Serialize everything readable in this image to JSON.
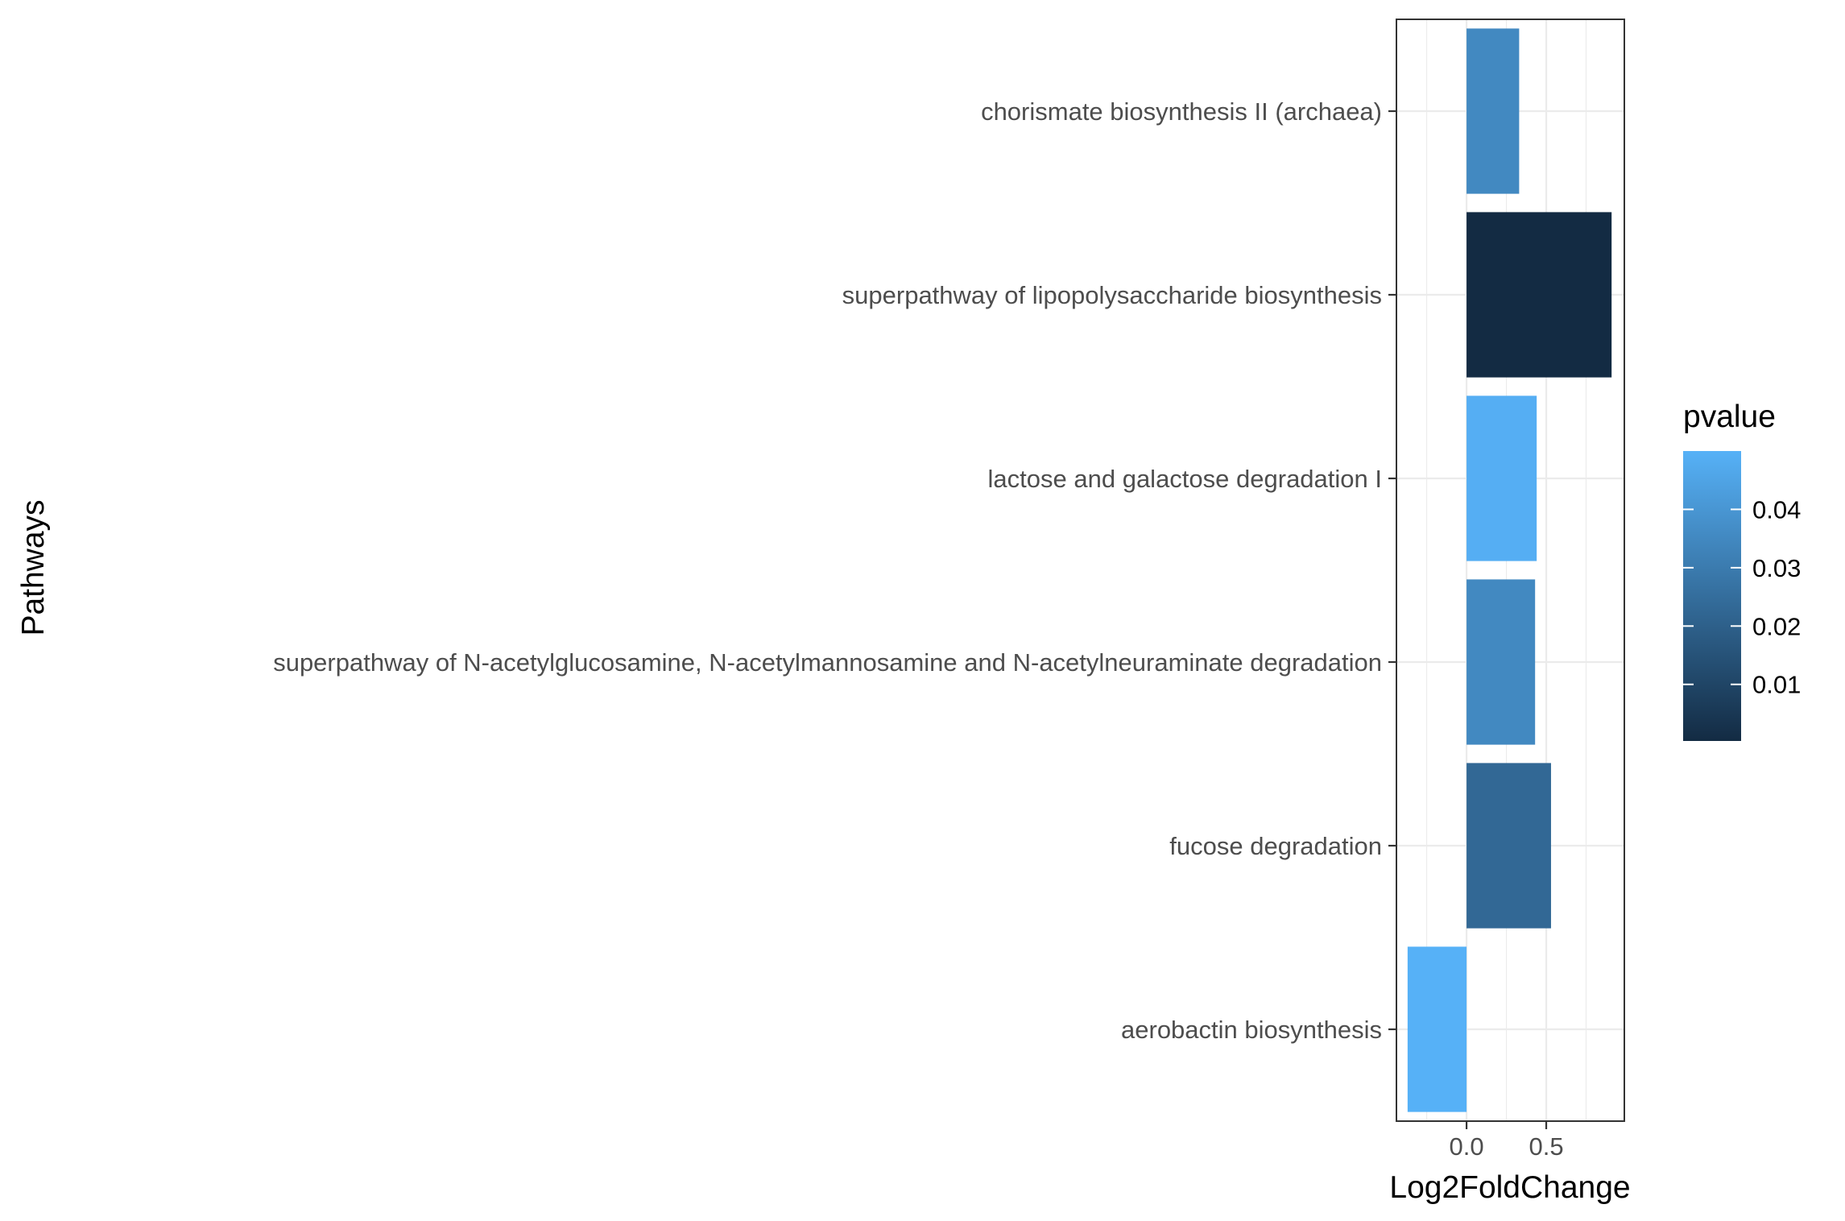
{
  "chart_data": {
    "type": "bar",
    "orientation": "horizontal",
    "xlabel": "Log2FoldChange",
    "ylabel": "Pathways",
    "xlim": [
      -0.44,
      0.99
    ],
    "x_ticks": [
      0.0,
      0.5
    ],
    "x_tick_labels": [
      "0.0",
      "0.5"
    ],
    "grid": true,
    "legend_position": "right",
    "categories": [
      "chorismate biosynthesis II (archaea)",
      "superpathway of lipopolysaccharide biosynthesis",
      "lactose and galactose degradation I",
      "superpathway of N-acetylglucosamine, N-acetylmannosamine and N-acetylneuraminate degradation",
      "fucose degradation",
      "aerobactin biosynthesis"
    ],
    "values": [
      0.33,
      0.91,
      0.44,
      0.43,
      0.53,
      -0.37
    ],
    "pvalues": [
      0.035,
      0.0003,
      0.049,
      0.035,
      0.023,
      0.05
    ],
    "color_scale": {
      "name": "pvalue",
      "low_color": "#132b43",
      "high_color": "#56b1f7",
      "range": [
        0.0003,
        0.05
      ],
      "ticks": [
        0.01,
        0.02,
        0.03,
        0.04
      ],
      "tick_labels": [
        "0.01",
        "0.02",
        "0.03",
        "0.04"
      ]
    }
  }
}
